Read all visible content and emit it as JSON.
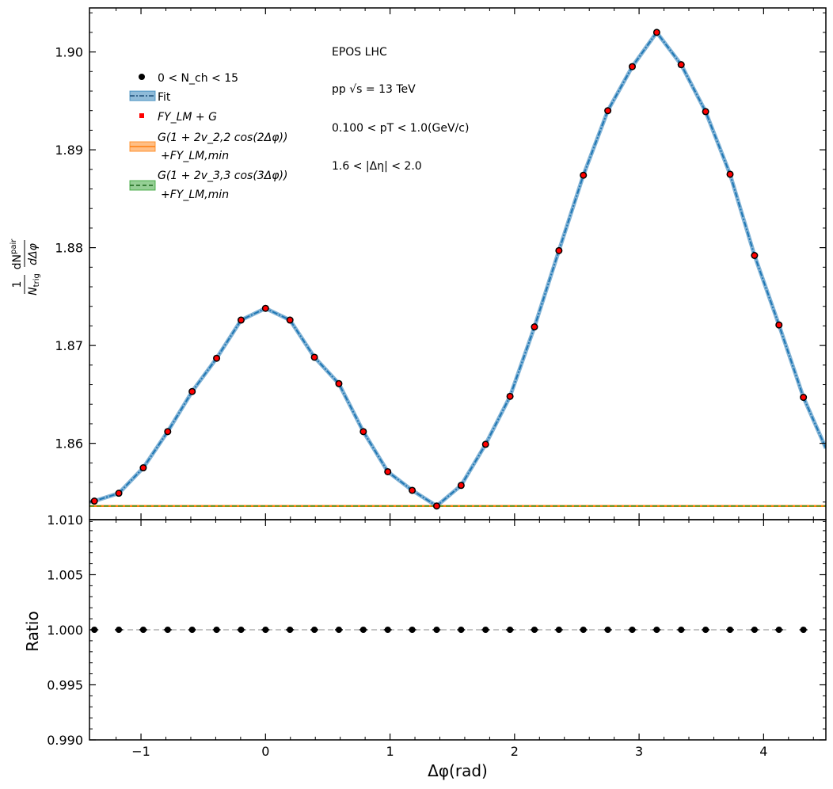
{
  "chart_data": [
    {
      "type": "scatter",
      "panel": "main",
      "ylabel_html": "1/N<sub>trig</sub> dN<sup>pair</sup>/dΔφ",
      "ylabel": {
        "frac_top": "1",
        "frac_bottom": "N",
        "frac_bottom_sub": "trig",
        "num_top": "dN",
        "num_sup": "pair",
        "num_bottom": "dΔφ"
      },
      "ylim": [
        1.8522,
        1.9045
      ],
      "xlim": [
        -1.4137,
        4.5
      ],
      "yticks": [
        "1.86",
        "1.87",
        "1.88",
        "1.89",
        "1.90"
      ],
      "ytick_values": [
        1.86,
        1.87,
        1.88,
        1.89,
        1.9
      ],
      "annotations": [
        "EPOS LHC",
        "pp √s = 13 TeV",
        "0.100 < pT < 1.0(GeV/c)",
        "1.6 < |Δη| < 2.0"
      ],
      "legend": [
        {
          "label": "0 < N_ch < 15",
          "kind": "black-marker"
        },
        {
          "label": "Fit",
          "kind": "blue-band"
        },
        {
          "label": "FY_LM + G",
          "kind": "red-marker"
        },
        {
          "label": "G(1 + 2v_2,2 cos(2Δφ))",
          "label2": "+FY_LM,min",
          "kind": "orange-band"
        },
        {
          "label": "G(1 + 2v_3,3 cos(3Δφ))",
          "label2": "+FY_LM,min",
          "kind": "green-band"
        }
      ],
      "legend_placement": "top-left",
      "x": [
        -1.3744,
        -1.1781,
        -0.9818,
        -0.7854,
        -0.5891,
        -0.3927,
        -0.1963,
        0.0,
        0.1963,
        0.3927,
        0.5891,
        0.7854,
        0.9818,
        1.1781,
        1.3744,
        1.5708,
        1.7671,
        1.9635,
        2.1598,
        2.3562,
        2.5525,
        2.7489,
        2.9452,
        3.1416,
        3.3379,
        3.5343,
        3.7306,
        3.927,
        4.1233,
        4.3197
      ],
      "series": [
        {
          "name": "0 < N_ch < 15",
          "color": "#000000",
          "values": [
            1.8541,
            1.8549,
            1.8575,
            1.8612,
            1.8653,
            1.8687,
            1.8726,
            1.8738,
            1.8726,
            1.8688,
            1.8661,
            1.8612,
            1.8571,
            1.8552,
            1.8536,
            1.8557,
            1.8599,
            1.8648,
            1.8719,
            1.8797,
            1.8874,
            1.894,
            1.8985,
            1.902,
            1.8987,
            1.8939,
            1.8875,
            1.8792,
            1.8721,
            1.8647
          ]
        },
        {
          "name": "FY_LM + G",
          "color": "#ff0000",
          "values": [
            1.8541,
            1.8549,
            1.8575,
            1.8612,
            1.8653,
            1.8687,
            1.8726,
            1.8738,
            1.8726,
            1.8688,
            1.8661,
            1.8612,
            1.8571,
            1.8552,
            1.8536,
            1.8557,
            1.8599,
            1.8648,
            1.8719,
            1.8797,
            1.8874,
            1.894,
            1.8985,
            1.902,
            1.8987,
            1.8939,
            1.8875,
            1.8792,
            1.8721,
            1.8647
          ]
        },
        {
          "name": "Fit",
          "color": "#1f77b4",
          "x_ext": [
            -1.4137,
            4.5
          ],
          "values_ext": [
            1.854,
            1.8595
          ]
        },
        {
          "name": "G(1+2v_2,2cos(2Δφ)) + FY_LM,min",
          "color": "#ff7f0e",
          "constant": 1.8536
        },
        {
          "name": "G(1+2v_3,3cos(3Δφ)) + FY_LM,min",
          "color": "#2ca02c",
          "constant": 1.8536
        }
      ]
    },
    {
      "type": "scatter",
      "panel": "ratio",
      "xlabel": "Δφ(rad)",
      "ylabel": "Ratio",
      "ylim": [
        0.99,
        1.01
      ],
      "xlim": [
        -1.4137,
        4.5
      ],
      "yticks": [
        "0.990",
        "0.995",
        "1.000",
        "1.005",
        "1.010"
      ],
      "ytick_values": [
        0.99,
        0.995,
        1.0,
        1.005,
        1.01
      ],
      "xticks": [
        "−1",
        "0",
        "1",
        "2",
        "3",
        "4"
      ],
      "xtick_values": [
        -1,
        0,
        1,
        2,
        3,
        4
      ],
      "reference_line": 1.0,
      "reference_line_range": [
        -1.1781,
        4.2
      ],
      "x": [
        -1.3744,
        -1.1781,
        -0.9818,
        -0.7854,
        -0.5891,
        -0.3927,
        -0.1963,
        0.0,
        0.1963,
        0.3927,
        0.5891,
        0.7854,
        0.9818,
        1.1781,
        1.3744,
        1.5708,
        1.7671,
        1.9635,
        2.1598,
        2.3562,
        2.5525,
        2.7489,
        2.9452,
        3.1416,
        3.3379,
        3.5343,
        3.7306,
        3.927,
        4.1233,
        4.3197
      ],
      "series": [
        {
          "name": "Ratio",
          "color": "#000000",
          "values": [
            1.0,
            1.0,
            1.0,
            1.0,
            1.0,
            1.0,
            1.0,
            1.0,
            1.0,
            1.0,
            1.0,
            1.0,
            1.0,
            1.0,
            1.0,
            1.0,
            1.0,
            1.0,
            1.0,
            1.0,
            1.0,
            1.0,
            1.0,
            1.0,
            1.0,
            1.0,
            1.0,
            1.0,
            1.0,
            1.0
          ]
        }
      ]
    }
  ]
}
